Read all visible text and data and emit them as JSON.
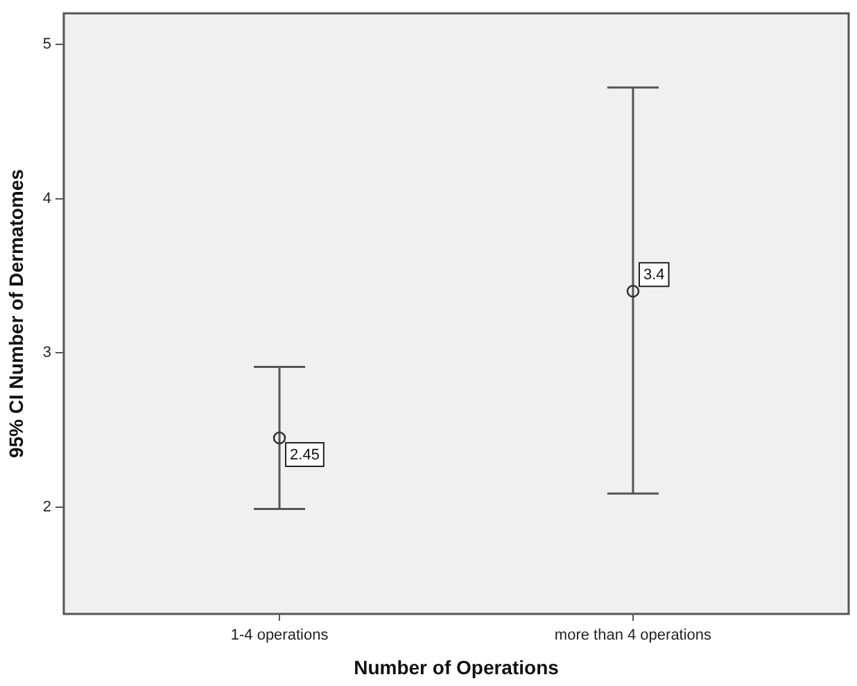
{
  "chart_data": {
    "type": "scatter",
    "xlabel": "Number of Operations",
    "ylabel": "95% CI Number of Dermatomes",
    "categories": [
      "1-4 operations",
      "more than 4 operations"
    ],
    "values": [
      2.45,
      3.4
    ],
    "errors": [
      [
        1.99,
        2.91
      ],
      [
        2.09,
        4.72
      ]
    ],
    "color": "#333333",
    "marker": "circle",
    "data_labels": true,
    "ylim": [
      1.31,
      5.2
    ],
    "yticks": [
      2,
      3,
      4,
      5
    ],
    "grid": false
  }
}
